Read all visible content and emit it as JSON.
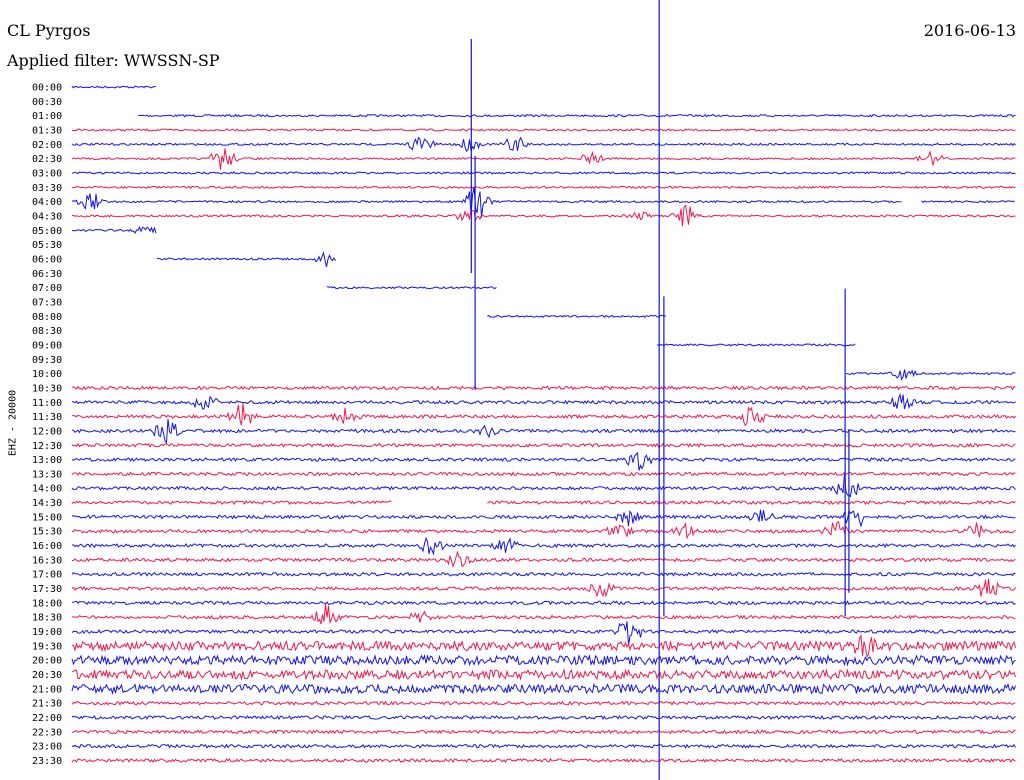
{
  "header": {
    "station": "CL Pyrgos",
    "filter": "Applied filter: WWSSN-SP",
    "date": "2016-06-13",
    "channel": "EHZ - 20000"
  },
  "colors": {
    "blue": "#1414e6",
    "red": "#f0184b"
  },
  "chart_data": {
    "type": "line",
    "title": "CL Pyrgos",
    "row_labels": [
      "00:00",
      "00:30",
      "01:00",
      "01:30",
      "02:00",
      "02:30",
      "03:00",
      "03:30",
      "04:00",
      "04:30",
      "05:00",
      "05:30",
      "06:00",
      "06:30",
      "07:00",
      "07:30",
      "08:00",
      "08:30",
      "09:00",
      "09:30",
      "10:00",
      "10:30",
      "11:00",
      "11:30",
      "12:00",
      "12:30",
      "13:00",
      "13:30",
      "14:00",
      "14:30",
      "15:00",
      "15:30",
      "16:00",
      "16:30",
      "17:00",
      "17:30",
      "18:00",
      "18:30",
      "19:00",
      "19:30",
      "20:00",
      "20:30",
      "21:00",
      "21:30",
      "22:00",
      "22:30",
      "23:00",
      "23:30"
    ],
    "row_colors": [
      "blue",
      "red",
      "blue",
      "red",
      "blue",
      "red",
      "blue",
      "red",
      "blue",
      "red",
      "blue",
      "red",
      "blue",
      "red",
      "blue",
      "red",
      "blue",
      "red",
      "blue",
      "red",
      "blue",
      "red",
      "blue",
      "red",
      "blue",
      "red",
      "blue",
      "red",
      "blue",
      "red",
      "blue",
      "red",
      "blue",
      "red",
      "blue",
      "red",
      "blue",
      "red",
      "blue",
      "red",
      "blue",
      "red",
      "blue",
      "red",
      "blue",
      "red",
      "blue",
      "red"
    ],
    "row_segments": [
      [
        [
          0,
          0.09
        ]
      ],
      [],
      [
        [
          0.07,
          1
        ]
      ],
      [
        [
          0,
          1
        ]
      ],
      [
        [
          0,
          1
        ]
      ],
      [
        [
          0,
          1
        ]
      ],
      [
        [
          0,
          1
        ]
      ],
      [
        [
          0,
          1
        ]
      ],
      [
        [
          0,
          0.88
        ],
        [
          0.9,
          1
        ]
      ],
      [
        [
          0,
          1
        ]
      ],
      [
        [
          0,
          0.09
        ]
      ],
      [],
      [
        [
          0.09,
          0.28
        ]
      ],
      [],
      [
        [
          0.27,
          0.45
        ]
      ],
      [],
      [
        [
          0.44,
          0.63
        ]
      ],
      [],
      [
        [
          0.62,
          0.83
        ]
      ],
      [],
      [
        [
          0.82,
          1
        ]
      ],
      [
        [
          0,
          1
        ]
      ],
      [
        [
          0,
          1
        ]
      ],
      [
        [
          0,
          1
        ]
      ],
      [
        [
          0,
          1
        ]
      ],
      [
        [
          0,
          1
        ]
      ],
      [
        [
          0,
          1
        ]
      ],
      [
        [
          0,
          1
        ]
      ],
      [
        [
          0,
          1
        ]
      ],
      [
        [
          0,
          0.34
        ],
        [
          0.44,
          1
        ]
      ],
      [
        [
          0,
          1
        ]
      ],
      [
        [
          0,
          1
        ]
      ],
      [
        [
          0,
          1
        ]
      ],
      [
        [
          0,
          1
        ]
      ],
      [
        [
          0,
          1
        ]
      ],
      [
        [
          0,
          1
        ]
      ],
      [
        [
          0,
          1
        ]
      ],
      [
        [
          0,
          1
        ]
      ],
      [
        [
          0,
          1
        ]
      ],
      [
        [
          0,
          1
        ]
      ],
      [
        [
          0,
          1
        ]
      ],
      [
        [
          0,
          1
        ]
      ],
      [
        [
          0,
          1
        ]
      ],
      [
        [
          0,
          1
        ]
      ],
      [
        [
          0,
          1
        ]
      ],
      [
        [
          0,
          1
        ]
      ],
      [
        [
          0,
          1
        ]
      ],
      [
        [
          0,
          1
        ]
      ]
    ],
    "events": [
      {
        "row": 4,
        "x": 0.37,
        "amp": 10
      },
      {
        "row": 4,
        "x": 0.42,
        "amp": 7
      },
      {
        "row": 4,
        "x": 0.47,
        "amp": 10
      },
      {
        "row": 5,
        "x": 0.16,
        "amp": 14
      },
      {
        "row": 5,
        "x": 0.55,
        "amp": 6
      },
      {
        "row": 5,
        "x": 0.91,
        "amp": 8
      },
      {
        "row": 8,
        "x": 0.02,
        "amp": 10
      },
      {
        "row": 8,
        "x": 0.43,
        "amp": 22
      },
      {
        "row": 9,
        "x": 0.42,
        "amp": 8
      },
      {
        "row": 9,
        "x": 0.6,
        "amp": 5
      },
      {
        "row": 9,
        "x": 0.65,
        "amp": 14
      },
      {
        "row": 10,
        "x": 0.08,
        "amp": 8
      },
      {
        "row": 12,
        "x": 0.27,
        "amp": 8
      },
      {
        "row": 20,
        "x": 0.88,
        "amp": 6
      },
      {
        "row": 22,
        "x": 0.14,
        "amp": 8
      },
      {
        "row": 22,
        "x": 0.88,
        "amp": 8
      },
      {
        "row": 23,
        "x": 0.18,
        "amp": 14
      },
      {
        "row": 23,
        "x": 0.29,
        "amp": 8
      },
      {
        "row": 23,
        "x": 0.72,
        "amp": 12
      },
      {
        "row": 24,
        "x": 0.1,
        "amp": 12
      },
      {
        "row": 24,
        "x": 0.44,
        "amp": 5
      },
      {
        "row": 26,
        "x": 0.6,
        "amp": 10
      },
      {
        "row": 28,
        "x": 0.82,
        "amp": 14
      },
      {
        "row": 30,
        "x": 0.59,
        "amp": 8
      },
      {
        "row": 30,
        "x": 0.73,
        "amp": 7
      },
      {
        "row": 30,
        "x": 0.83,
        "amp": 12
      },
      {
        "row": 31,
        "x": 0.58,
        "amp": 8
      },
      {
        "row": 31,
        "x": 0.65,
        "amp": 6
      },
      {
        "row": 31,
        "x": 0.81,
        "amp": 10
      },
      {
        "row": 31,
        "x": 0.96,
        "amp": 8
      },
      {
        "row": 32,
        "x": 0.38,
        "amp": 9
      },
      {
        "row": 32,
        "x": 0.46,
        "amp": 7
      },
      {
        "row": 33,
        "x": 0.41,
        "amp": 8
      },
      {
        "row": 35,
        "x": 0.56,
        "amp": 9
      },
      {
        "row": 35,
        "x": 0.97,
        "amp": 12
      },
      {
        "row": 37,
        "x": 0.27,
        "amp": 14
      },
      {
        "row": 37,
        "x": 0.37,
        "amp": 6
      },
      {
        "row": 38,
        "x": 0.59,
        "amp": 16
      },
      {
        "row": 39,
        "x": 0.84,
        "amp": 8
      }
    ],
    "spikes": [
      {
        "x": 0.423,
        "top": 0.05,
        "bottom": 0.35,
        "color": "blue"
      },
      {
        "x": 0.427,
        "top": 0.2,
        "bottom": 0.5,
        "color": "blue"
      },
      {
        "x": 0.622,
        "top": 0.0,
        "bottom": 1.0,
        "color": "blue"
      },
      {
        "x": 0.627,
        "top": 0.38,
        "bottom": 0.79,
        "color": "blue"
      },
      {
        "x": 0.819,
        "top": 0.37,
        "bottom": 0.79,
        "color": "blue"
      },
      {
        "x": 0.823,
        "top": 0.55,
        "bottom": 0.76,
        "color": "blue"
      }
    ]
  }
}
